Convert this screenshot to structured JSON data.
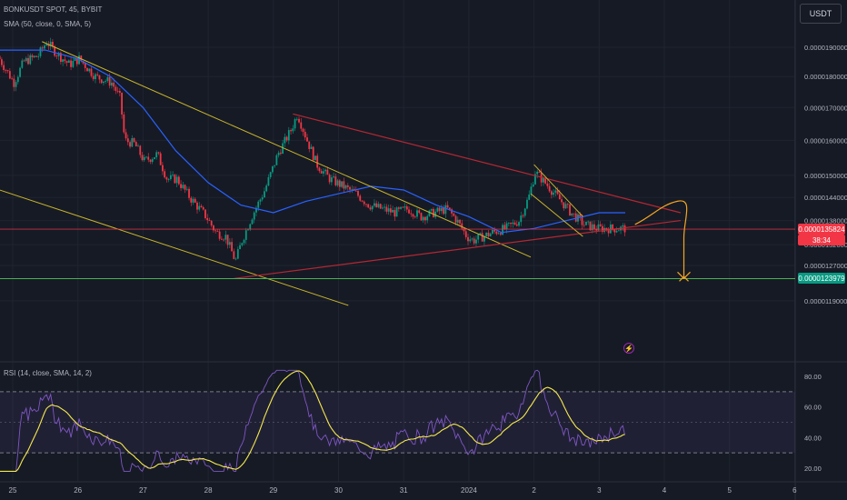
{
  "header": {
    "symbol_line": "BONKUSDT SPOT, 45, BYBIT",
    "sma_line": "SMA (50, close, 0, SMA, 5)",
    "rsi_line": "RSI (14, close, SMA, 14, 2)"
  },
  "currency_button": "USDT",
  "price_tags": {
    "last_price": "0.0000135824",
    "countdown": "38:34",
    "support_price": "0.0000123979",
    "last_color": "#f23645",
    "support_color": "#089981"
  },
  "colors": {
    "background": "#161a25",
    "up_candle": "#089981",
    "down_candle": "#f23645",
    "sma": "#2962ff",
    "trendline_yellow": "#c9b52b",
    "triangle_red": "#b22833",
    "support_green": "#4caf50",
    "projection_orange": "#f5a623",
    "rsi_line": "#7e57c2",
    "rsi_sma": "#f5e94c"
  },
  "icons": {
    "alert": "lightning-icon"
  },
  "chart_data": [
    {
      "type": "candlestick",
      "title": "BONKUSDT SPOT, 45, BYBIT",
      "xlabel": "",
      "ylabel": "",
      "x_ticks": [
        "25",
        "26",
        "27",
        "28",
        "29",
        "30",
        "31",
        "2024",
        "2",
        "3",
        "4",
        "5",
        "6"
      ],
      "y_ticks": [
        "0.0000190000",
        "0.0000180000",
        "0.0000170000",
        "0.0000160000",
        "0.0000150000",
        "0.0000144000",
        "0.0000138000",
        "0.0000132000",
        "0.0000127000",
        "0.0000119000"
      ],
      "ylim": [
        1.15e-05,
        2e-05
      ],
      "log_scale": true,
      "x_range_days": [
        24.8,
        31.0
      ],
      "price_path": [
        [
          24.8,
          1.87e-05
        ],
        [
          25.05,
          1.78e-05
        ],
        [
          25.2,
          1.85e-05
        ],
        [
          25.42,
          1.87e-05
        ],
        [
          25.55,
          1.92e-05
        ],
        [
          25.7,
          1.88e-05
        ],
        [
          25.9,
          1.84e-05
        ],
        [
          26.05,
          1.86e-05
        ],
        [
          26.3,
          1.8e-05
        ],
        [
          26.55,
          1.78e-05
        ],
        [
          26.68,
          1.73e-05
        ],
        [
          26.75,
          1.6e-05
        ],
        [
          26.9,
          1.59e-05
        ],
        [
          27.05,
          1.54e-05
        ],
        [
          27.25,
          1.56e-05
        ],
        [
          27.4,
          1.49e-05
        ],
        [
          27.55,
          1.49e-05
        ],
        [
          27.75,
          1.44e-05
        ],
        [
          28.0,
          1.39e-05
        ],
        [
          28.15,
          1.35e-05
        ],
        [
          28.3,
          1.34e-05
        ],
        [
          28.45,
          1.28e-05
        ],
        [
          28.55,
          1.33e-05
        ],
        [
          28.7,
          1.39e-05
        ],
        [
          28.9,
          1.46e-05
        ],
        [
          29.1,
          1.56e-05
        ],
        [
          29.3,
          1.63e-05
        ],
        [
          29.4,
          1.68e-05
        ],
        [
          29.55,
          1.6e-05
        ],
        [
          29.7,
          1.53e-05
        ],
        [
          29.9,
          1.49e-05
        ],
        [
          30.1,
          1.47e-05
        ],
        [
          30.3,
          1.45e-05
        ],
        [
          30.5,
          1.42e-05
        ],
        [
          30.7,
          1.41e-05
        ],
        [
          30.9,
          1.4e-05
        ],
        [
          31.1,
          1.41e-05
        ],
        [
          31.3,
          1.39e-05
        ],
        [
          31.5,
          1.4e-05
        ],
        [
          31.7,
          1.41e-05
        ],
        [
          31.85,
          1.38e-05
        ],
        [
          32.0,
          1.34e-05
        ],
        [
          32.1,
          1.33e-05
        ],
        [
          32.25,
          1.34e-05
        ],
        [
          32.4,
          1.35e-05
        ],
        [
          32.6,
          1.36e-05
        ],
        [
          32.8,
          1.38e-05
        ],
        [
          32.95,
          1.44e-05
        ],
        [
          33.05,
          1.51e-05
        ],
        [
          33.2,
          1.48e-05
        ],
        [
          33.4,
          1.44e-05
        ],
        [
          33.6,
          1.4e-05
        ],
        [
          33.8,
          1.37e-05
        ],
        [
          34.0,
          1.36e-05
        ],
        [
          34.2,
          1.36e-05
        ],
        [
          34.4,
          1.36e-05
        ]
      ],
      "sma_path": [
        [
          24.8,
          1.89e-05
        ],
        [
          25.5,
          1.89e-05
        ],
        [
          26.0,
          1.86e-05
        ],
        [
          26.5,
          1.8e-05
        ],
        [
          27.0,
          1.7e-05
        ],
        [
          27.5,
          1.57e-05
        ],
        [
          28.0,
          1.48e-05
        ],
        [
          28.5,
          1.42e-05
        ],
        [
          29.0,
          1.4e-05
        ],
        [
          29.5,
          1.43e-05
        ],
        [
          30.0,
          1.45e-05
        ],
        [
          30.5,
          1.47e-05
        ],
        [
          31.0,
          1.46e-05
        ],
        [
          31.5,
          1.42e-05
        ],
        [
          32.0,
          1.39e-05
        ],
        [
          32.5,
          1.35e-05
        ],
        [
          33.0,
          1.36e-05
        ],
        [
          33.5,
          1.38e-05
        ],
        [
          34.0,
          1.4e-05
        ],
        [
          34.4,
          1.4e-05
        ]
      ],
      "drawings": {
        "descending_channel_upper": [
          [
            25.45,
            1.92e-05
          ],
          [
            32.95,
            1.29e-05
          ]
        ],
        "descending_channel_lower": [
          [
            24.8,
            1.46e-05
          ],
          [
            30.15,
            1.18e-05
          ]
        ],
        "triangle_resistance": [
          [
            29.3,
            1.68e-05
          ],
          [
            35.25,
            1.4e-05
          ]
        ],
        "triangle_support": [
          [
            28.4,
            1.24e-05
          ],
          [
            35.25,
            1.38e-05
          ]
        ],
        "support_level": 1.23979e-05,
        "last_price_level": 1.35824e-05,
        "projection_target": 1.24e-05
      }
    },
    {
      "type": "line",
      "title": "RSI (14, close, SMA, 14, 2)",
      "xlabel": "",
      "ylabel": "",
      "y_ticks": [
        "80.00",
        "60.00",
        "40.00",
        "20.00"
      ],
      "ylim": [
        15,
        85
      ],
      "bands": [
        30,
        70
      ],
      "series": []
    }
  ]
}
